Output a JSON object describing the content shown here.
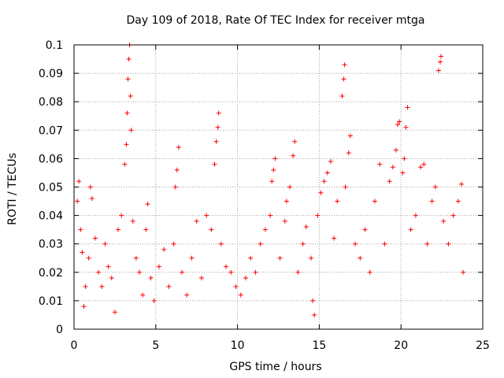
{
  "chart_data": {
    "type": "scatter",
    "title": "Day 109 of 2018, Rate Of TEC Index for receiver mtga",
    "xlabel": "GPS time / hours",
    "ylabel": "ROTI / TECUs",
    "xlim": [
      0,
      25
    ],
    "ylim": [
      0,
      0.1
    ],
    "xticks": [
      0,
      5,
      10,
      15,
      20,
      25
    ],
    "yticks": [
      0,
      0.01,
      0.02,
      0.03,
      0.04,
      0.05,
      0.06,
      0.07,
      0.08,
      0.09,
      0.1
    ],
    "grid": true,
    "marker": "+",
    "color": "#ff0000",
    "series": [
      {
        "name": "ROTI",
        "note": "dense band of points ~0.01-0.04 across 0-24 h; representative sample of visible points",
        "points": [
          [
            0.2,
            0.045
          ],
          [
            0.3,
            0.052
          ],
          [
            0.4,
            0.035
          ],
          [
            0.5,
            0.027
          ],
          [
            0.6,
            0.008
          ],
          [
            0.7,
            0.015
          ],
          [
            0.9,
            0.025
          ],
          [
            1.0,
            0.05
          ],
          [
            1.1,
            0.046
          ],
          [
            1.3,
            0.032
          ],
          [
            1.5,
            0.02
          ],
          [
            1.7,
            0.015
          ],
          [
            1.9,
            0.03
          ],
          [
            2.1,
            0.022
          ],
          [
            2.3,
            0.018
          ],
          [
            2.5,
            0.006
          ],
          [
            2.7,
            0.035
          ],
          [
            2.9,
            0.04
          ],
          [
            3.1,
            0.058
          ],
          [
            3.2,
            0.065
          ],
          [
            3.25,
            0.076
          ],
          [
            3.3,
            0.088
          ],
          [
            3.35,
            0.095
          ],
          [
            3.4,
            0.1
          ],
          [
            3.45,
            0.082
          ],
          [
            3.5,
            0.07
          ],
          [
            3.6,
            0.038
          ],
          [
            3.8,
            0.025
          ],
          [
            4.0,
            0.02
          ],
          [
            4.2,
            0.012
          ],
          [
            4.4,
            0.035
          ],
          [
            4.5,
            0.044
          ],
          [
            4.7,
            0.018
          ],
          [
            4.9,
            0.01
          ],
          [
            5.2,
            0.022
          ],
          [
            5.5,
            0.028
          ],
          [
            5.8,
            0.015
          ],
          [
            6.1,
            0.03
          ],
          [
            6.2,
            0.05
          ],
          [
            6.3,
            0.056
          ],
          [
            6.4,
            0.064
          ],
          [
            6.6,
            0.02
          ],
          [
            6.9,
            0.012
          ],
          [
            7.2,
            0.025
          ],
          [
            7.5,
            0.038
          ],
          [
            7.8,
            0.018
          ],
          [
            8.1,
            0.04
          ],
          [
            8.4,
            0.035
          ],
          [
            8.6,
            0.058
          ],
          [
            8.7,
            0.066
          ],
          [
            8.8,
            0.071
          ],
          [
            8.85,
            0.076
          ],
          [
            9.0,
            0.03
          ],
          [
            9.3,
            0.022
          ],
          [
            9.6,
            0.02
          ],
          [
            9.9,
            0.015
          ],
          [
            10.2,
            0.012
          ],
          [
            10.5,
            0.018
          ],
          [
            10.8,
            0.025
          ],
          [
            11.1,
            0.02
          ],
          [
            11.4,
            0.03
          ],
          [
            11.7,
            0.035
          ],
          [
            12.0,
            0.04
          ],
          [
            12.1,
            0.052
          ],
          [
            12.2,
            0.056
          ],
          [
            12.3,
            0.06
          ],
          [
            12.6,
            0.025
          ],
          [
            12.9,
            0.038
          ],
          [
            13.0,
            0.045
          ],
          [
            13.2,
            0.05
          ],
          [
            13.4,
            0.061
          ],
          [
            13.5,
            0.066
          ],
          [
            13.7,
            0.02
          ],
          [
            14.0,
            0.03
          ],
          [
            14.2,
            0.036
          ],
          [
            14.5,
            0.025
          ],
          [
            14.6,
            0.01
          ],
          [
            14.7,
            0.005
          ],
          [
            14.9,
            0.04
          ],
          [
            15.1,
            0.048
          ],
          [
            15.3,
            0.052
          ],
          [
            15.5,
            0.055
          ],
          [
            15.7,
            0.059
          ],
          [
            15.9,
            0.032
          ],
          [
            16.1,
            0.045
          ],
          [
            16.4,
            0.082
          ],
          [
            16.5,
            0.088
          ],
          [
            16.55,
            0.093
          ],
          [
            16.6,
            0.05
          ],
          [
            16.8,
            0.062
          ],
          [
            16.9,
            0.068
          ],
          [
            17.2,
            0.03
          ],
          [
            17.5,
            0.025
          ],
          [
            17.8,
            0.035
          ],
          [
            18.1,
            0.02
          ],
          [
            18.4,
            0.045
          ],
          [
            18.7,
            0.058
          ],
          [
            19.0,
            0.03
          ],
          [
            19.3,
            0.052
          ],
          [
            19.5,
            0.057
          ],
          [
            19.7,
            0.063
          ],
          [
            19.8,
            0.072
          ],
          [
            19.9,
            0.073
          ],
          [
            20.1,
            0.055
          ],
          [
            20.2,
            0.06
          ],
          [
            20.3,
            0.071
          ],
          [
            20.4,
            0.078
          ],
          [
            20.6,
            0.035
          ],
          [
            20.9,
            0.04
          ],
          [
            21.2,
            0.057
          ],
          [
            21.4,
            0.058
          ],
          [
            21.6,
            0.03
          ],
          [
            21.9,
            0.045
          ],
          [
            22.1,
            0.05
          ],
          [
            22.3,
            0.091
          ],
          [
            22.4,
            0.094
          ],
          [
            22.45,
            0.096
          ],
          [
            22.6,
            0.038
          ],
          [
            22.9,
            0.03
          ],
          [
            23.2,
            0.04
          ],
          [
            23.5,
            0.045
          ],
          [
            23.7,
            0.051
          ],
          [
            23.8,
            0.02
          ]
        ]
      }
    ]
  }
}
